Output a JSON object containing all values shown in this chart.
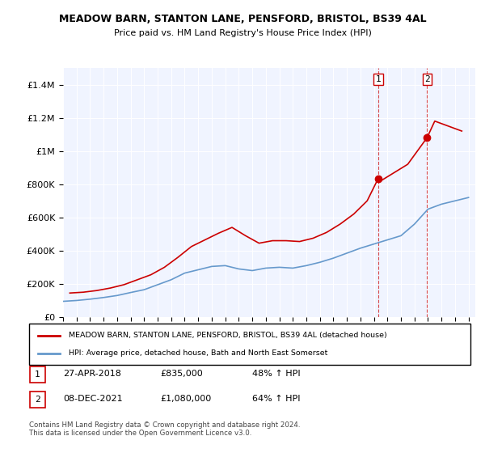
{
  "title": "MEADOW BARN, STANTON LANE, PENSFORD, BRISTOL, BS39 4AL",
  "subtitle": "Price paid vs. HM Land Registry's House Price Index (HPI)",
  "legend_line1": "MEADOW BARN, STANTON LANE, PENSFORD, BRISTOL, BS39 4AL (detached house)",
  "legend_line2": "HPI: Average price, detached house, Bath and North East Somerset",
  "footnote": "Contains HM Land Registry data © Crown copyright and database right 2024.\nThis data is licensed under the Open Government Licence v3.0.",
  "sale1_label": "1",
  "sale1_date": "27-APR-2018",
  "sale1_price": "£835,000",
  "sale1_hpi": "48% ↑ HPI",
  "sale2_label": "2",
  "sale2_date": "08-DEC-2021",
  "sale2_price": "£1,080,000",
  "sale2_hpi": "64% ↑ HPI",
  "sale1_x": 2018.32,
  "sale1_y": 835000,
  "sale2_x": 2021.93,
  "sale2_y": 1080000,
  "hpi_color": "#6699cc",
  "price_color": "#cc0000",
  "vline_color": "#cc0000",
  "background_color": "#f0f4ff",
  "ylim": [
    0,
    1500000
  ],
  "xlim_start": 1995,
  "xlim_end": 2025.5,
  "hpi_years": [
    1995,
    1996,
    1997,
    1998,
    1999,
    2000,
    2001,
    2002,
    2003,
    2004,
    2005,
    2006,
    2007,
    2008,
    2009,
    2010,
    2011,
    2012,
    2013,
    2014,
    2015,
    2016,
    2017,
    2018,
    2019,
    2020,
    2021,
    2022,
    2023,
    2024,
    2025
  ],
  "hpi_values": [
    95000,
    100000,
    108000,
    118000,
    130000,
    148000,
    165000,
    195000,
    225000,
    265000,
    285000,
    305000,
    310000,
    290000,
    280000,
    295000,
    300000,
    295000,
    310000,
    330000,
    355000,
    385000,
    415000,
    440000,
    465000,
    490000,
    560000,
    650000,
    680000,
    700000,
    720000
  ],
  "price_years": [
    1995.5,
    1996.5,
    1997.5,
    1998.5,
    1999.5,
    2000.5,
    2001.5,
    2002.5,
    2003.5,
    2004.5,
    2005.5,
    2006.5,
    2007.5,
    2008.5,
    2009.5,
    2010.5,
    2011.5,
    2012.5,
    2013.5,
    2014.5,
    2015.5,
    2016.5,
    2017.5,
    2018.32,
    2018.5,
    2019.5,
    2020.5,
    2021.93,
    2022.5,
    2023.5,
    2024.5
  ],
  "price_values": [
    145000,
    150000,
    160000,
    175000,
    195000,
    225000,
    255000,
    300000,
    360000,
    425000,
    465000,
    505000,
    540000,
    490000,
    445000,
    460000,
    460000,
    455000,
    475000,
    510000,
    560000,
    620000,
    700000,
    835000,
    820000,
    870000,
    920000,
    1080000,
    1180000,
    1150000,
    1120000
  ]
}
